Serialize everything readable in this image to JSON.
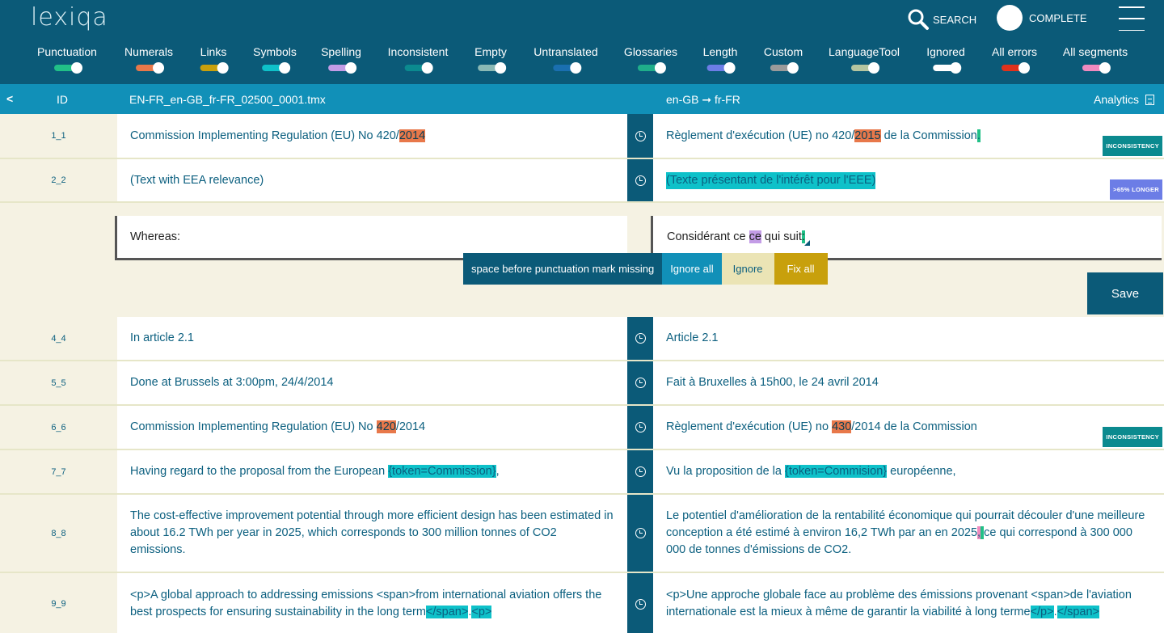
{
  "app": {
    "logo": "lexiqa"
  },
  "header": {
    "search_label": "SEARCH",
    "complete_label": "COMPLETE"
  },
  "filters": [
    {
      "label": "Punctuation",
      "color": "#21c087"
    },
    {
      "label": "Numerals",
      "color": "#e8784a"
    },
    {
      "label": "Links",
      "color": "#c8a00c"
    },
    {
      "label": "Symbols",
      "color": "#0ec1c9"
    },
    {
      "label": "Spelling",
      "color": "#c39ce6"
    },
    {
      "label": "Inconsistent",
      "color": "#0b8a8f"
    },
    {
      "label": "Empty",
      "color": "#8ab9b5"
    },
    {
      "label": "Untranslated",
      "color": "#1a6fb0"
    },
    {
      "label": "Glossaries",
      "color": "#1fae8a"
    },
    {
      "label": "Length",
      "color": "#6c7de6"
    },
    {
      "label": "Custom",
      "color": "#9a9a9a"
    },
    {
      "label": "LanguageTool",
      "color": "#b5c5a0"
    },
    {
      "label": "Ignored",
      "color": "#ffffff"
    },
    {
      "label": "All errors",
      "color": "#e0321c"
    },
    {
      "label": "All segments",
      "color": "#f08abf"
    }
  ],
  "subbar": {
    "back": "<",
    "id_header": "ID",
    "filename": "EN-FR_en-GB_fr-FR_02500_0001.tmx",
    "language_pair": "en-GB ➞ fr-FR",
    "analytics_label": "Analytics"
  },
  "rows": [
    {
      "id": "1_1",
      "src_pre": "Commission Implementing Regulation (EU) No 420/",
      "src_hl": "2014",
      "tgt_pre": "Règlement d'exécution (UE) no 420/",
      "tgt_hl": "2015",
      "tgt_post": " de la Commission",
      "tgt_hl2": ".",
      "badge": "INCONSISTENCY"
    },
    {
      "id": "2_2",
      "src": "(Text with EEA relevance)",
      "tgt_hl": "(Texte présentant de l'intérêt pour l'EEE)",
      "badge": ">65% LONGER"
    },
    {
      "id": "4_4",
      "src": "In article 2.1",
      "tgt": "Article 2.1"
    },
    {
      "id": "5_5",
      "src": "Done at Brussels at 3:00pm, 24/4/2014",
      "tgt": "Fait à Bruxelles à 15h00, le 24 avril 2014"
    },
    {
      "id": "6_6",
      "src_pre": "Commission Implementing Regulation (EU) No ",
      "src_hl": "420",
      "src_post": "/2014",
      "tgt_pre": "Règlement d'exécution (UE) no ",
      "tgt_hl": "430",
      "tgt_post": "/2014 de la Commission",
      "badge": "INCONSISTENCY"
    },
    {
      "id": "7_7",
      "src_pre": "Having regard to the proposal from the European ",
      "src_hl": "{token=Commission}",
      "src_post": ",",
      "tgt_pre": "Vu la proposition de la ",
      "tgt_hl": "{token=Commision}",
      "tgt_post": " européenne,"
    },
    {
      "id": "8_8",
      "src": "The cost-effective improvement potential through more efficient design has been estimated in about 16.2 TWh per year in 2025, which corresponds to 300 million tonnes of CO2 emissions.",
      "tgt_pre": "Le potentiel d'amélioration de la rentabilité économique qui pourrait découler d'une meilleure conception a été estimé à environ 16,2 TWh par an en 2025",
      "tgt_hl": ",",
      "tgt_hl2": " ",
      "tgt_post": " ce qui correspond à 300 000 000 de tonnes d'émissions de CO2."
    },
    {
      "id": "9_9",
      "src_pre": "<p>A global approach to addressing emissions <span>from international aviation offers the best prospects for ensuring sustainability in the long term",
      "src_hl": "</span>",
      "src_mid": ".",
      "src_hl2": "<p>",
      "tgt_pre": "<p>Une approche globale face au problème des émissions provenant <span>de l'aviation internationale est la mieux à même de garantir la viabilité à long terme",
      "tgt_hl": "</p>",
      "tgt_mid": ".",
      "tgt_hl2": "</span>"
    }
  ],
  "editing": {
    "src": "Whereas:",
    "tgt_pre": "Considérant ce ",
    "tgt_hl": "ce",
    "tgt_post": " qui suit",
    "tgt_hl2": ":",
    "popup_message": "space before punctuation mark missing",
    "ignore_all": "Ignore all",
    "ignore": "Ignore",
    "fix_all": "Fix all",
    "save": "Save"
  },
  "colors": {
    "header": "#0b5a78",
    "subbar": "#1190b8",
    "background": "#f5f2e3",
    "numerals": "#e8784a",
    "punctuation": "#21c087",
    "symbols": "#0ec1c9",
    "spelling": "#c39ce6",
    "length": "#6c7de6",
    "inconsistency_badge": "#0b8a8f"
  }
}
